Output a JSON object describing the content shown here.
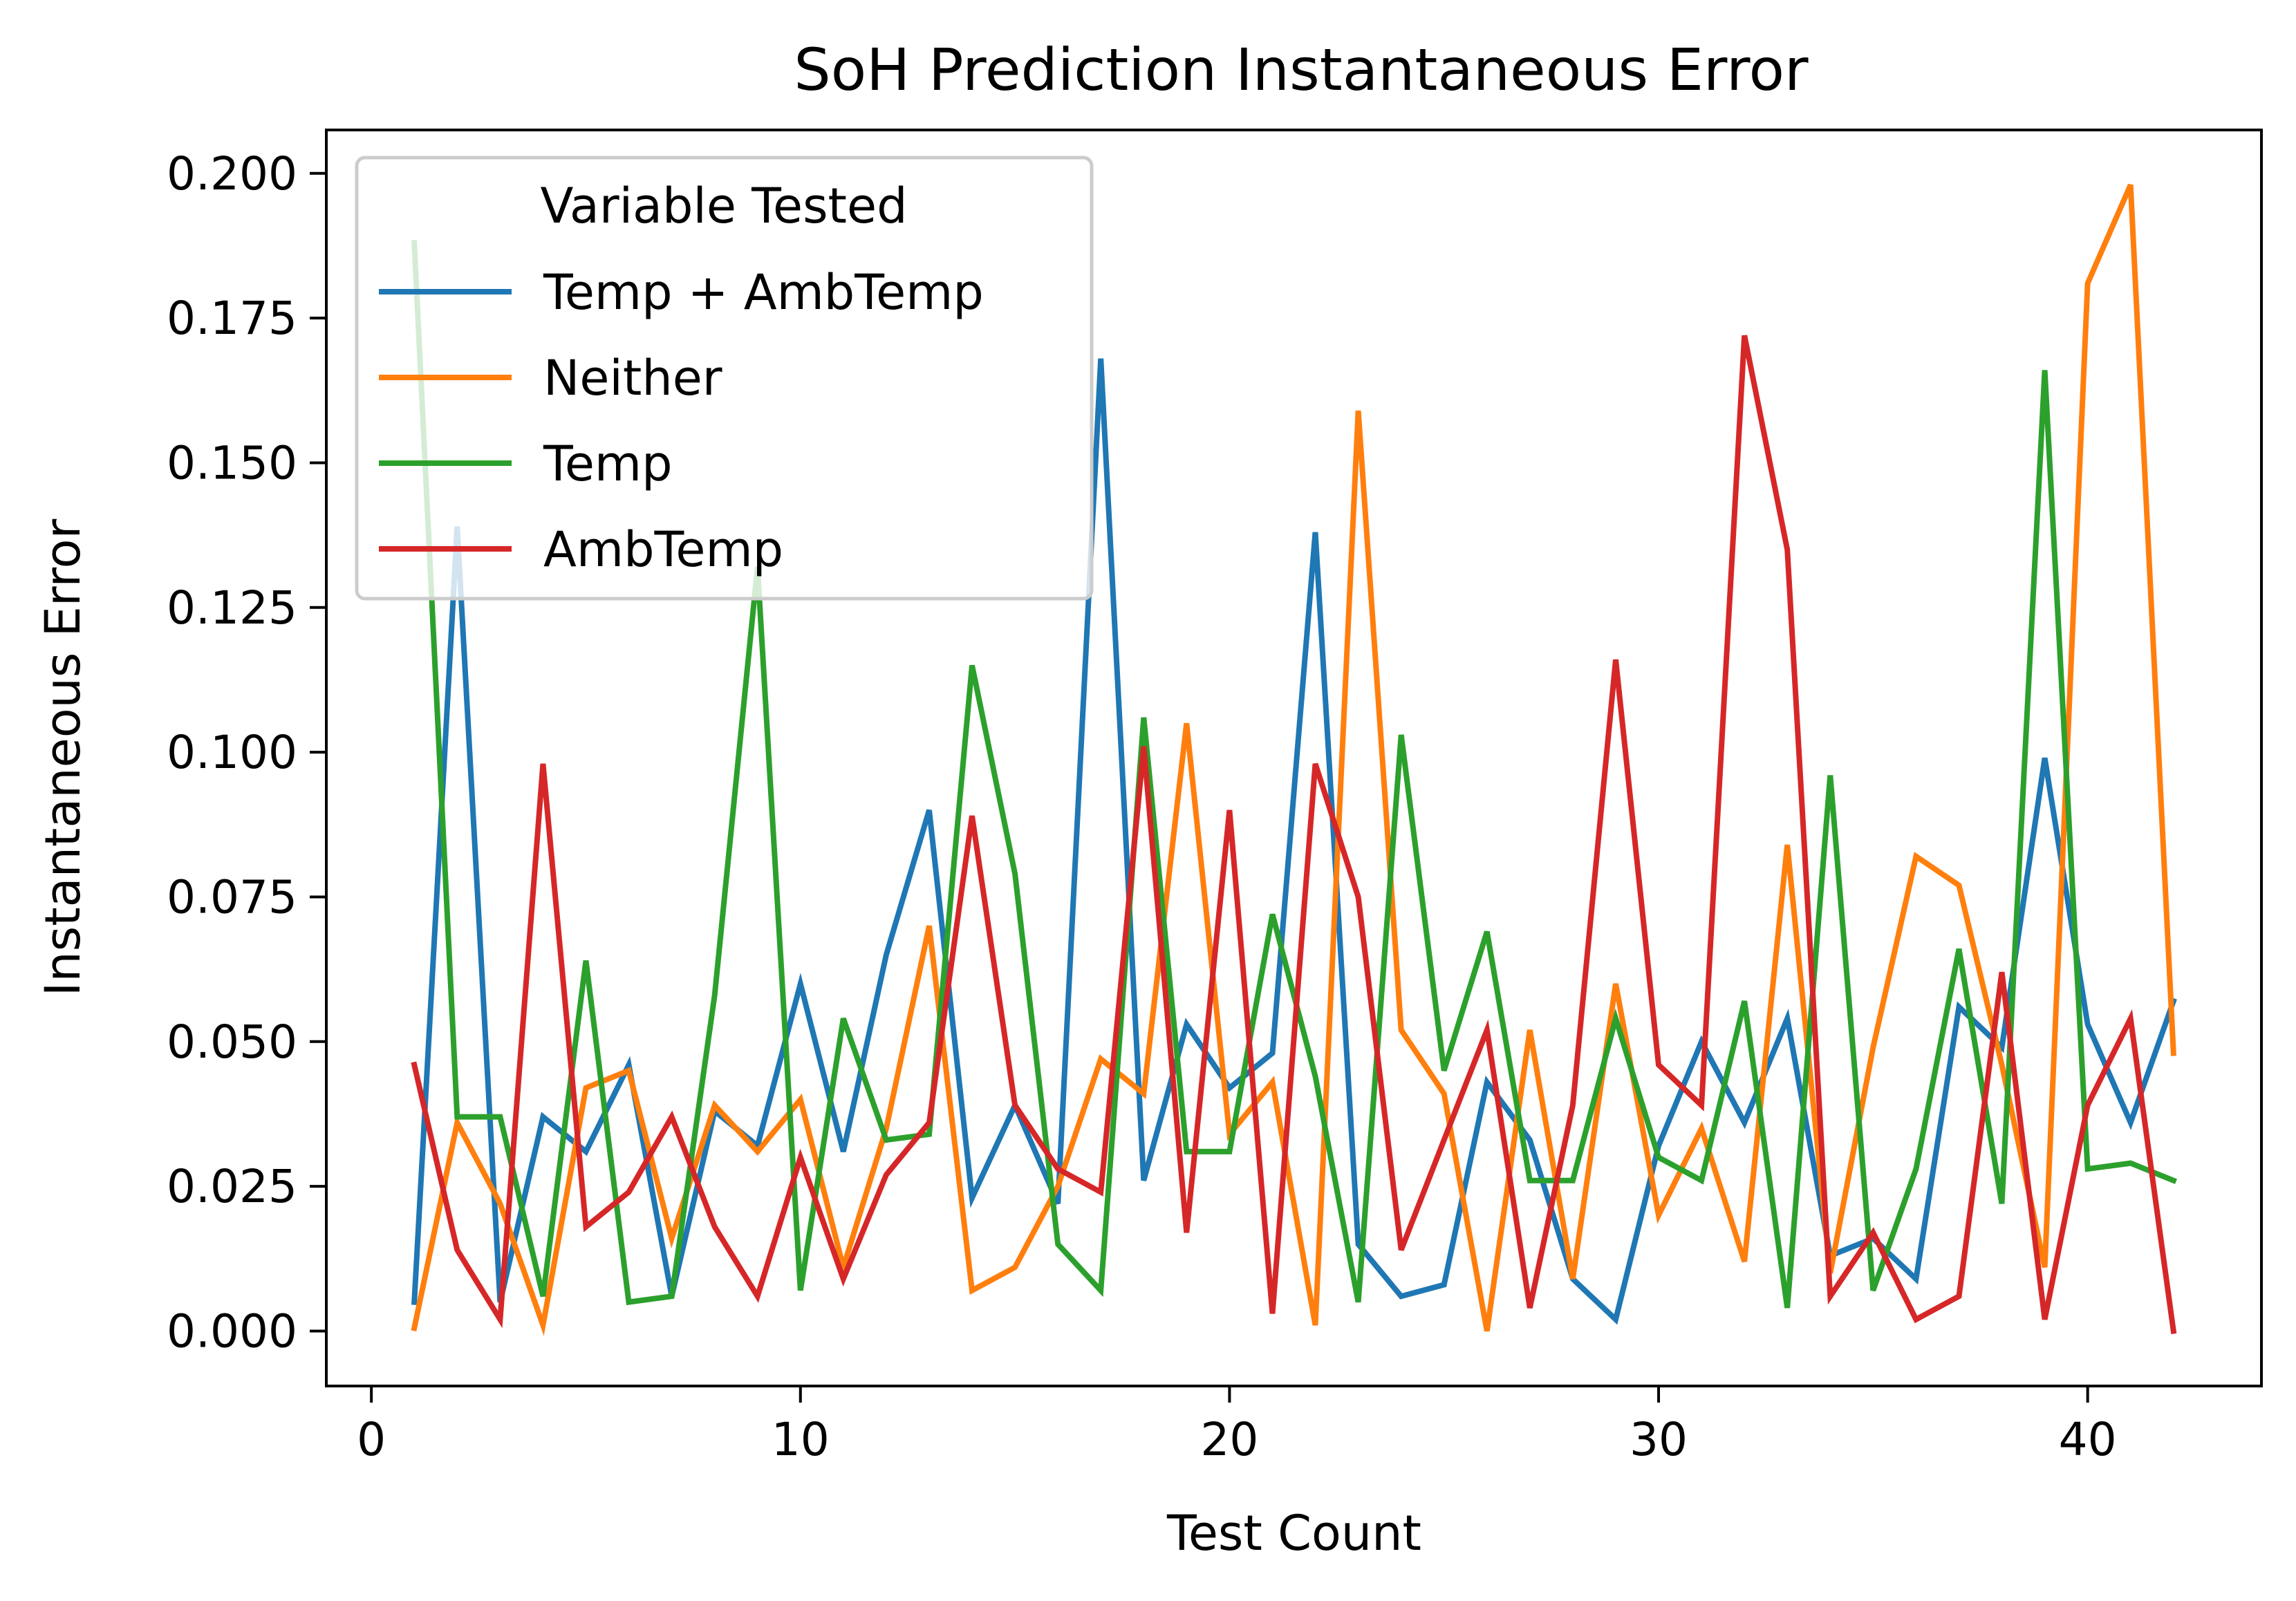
{
  "chart_data": {
    "type": "line",
    "title": "SoH Prediction Instantaneous Error",
    "xlabel": "Test Count",
    "ylabel": "Instantaneous Error",
    "xlim": [
      -1.05,
      44.05
    ],
    "ylim": [
      -0.0095,
      0.2075
    ],
    "xticks": [
      0,
      10,
      20,
      30,
      40
    ],
    "xtick_labels": [
      "0",
      "10",
      "20",
      "30",
      "40"
    ],
    "yticks": [
      0.0,
      0.025,
      0.05,
      0.075,
      0.1,
      0.125,
      0.15,
      0.175,
      0.2
    ],
    "ytick_labels": [
      "0.000",
      "0.025",
      "0.050",
      "0.075",
      "0.100",
      "0.125",
      "0.150",
      "0.175",
      "0.200"
    ],
    "grid": false,
    "legend": {
      "title": "Variable Tested",
      "placement": "top-left"
    },
    "x": [
      1,
      2,
      3,
      4,
      5,
      6,
      7,
      8,
      9,
      10,
      11,
      12,
      13,
      14,
      15,
      16,
      17,
      18,
      19,
      20,
      21,
      22,
      23,
      24,
      25,
      26,
      27,
      28,
      29,
      30,
      31,
      32,
      33,
      34,
      35,
      36,
      37,
      38,
      39,
      40,
      41,
      42
    ],
    "series": [
      {
        "name": "Temp + AmbTemp",
        "color": "#1f77b4",
        "values": [
          0.005,
          0.139,
          0.005,
          0.037,
          0.031,
          0.046,
          0.006,
          0.038,
          0.032,
          0.06,
          0.031,
          0.065,
          0.09,
          0.023,
          0.039,
          0.022,
          0.168,
          0.026,
          0.053,
          0.042,
          0.048,
          0.138,
          0.015,
          0.006,
          0.008,
          0.043,
          0.033,
          0.009,
          0.002,
          0.032,
          0.05,
          0.036,
          0.054,
          0.013,
          0.016,
          0.009,
          0.056,
          0.049,
          0.099,
          0.053,
          0.036,
          0.057
        ]
      },
      {
        "name": "Neither",
        "color": "#ff7f0e",
        "values": [
          0.0005,
          0.036,
          0.022,
          0.001,
          0.042,
          0.045,
          0.016,
          0.039,
          0.031,
          0.04,
          0.011,
          0.035,
          0.07,
          0.007,
          0.011,
          0.025,
          0.047,
          0.041,
          0.105,
          0.034,
          0.043,
          0.001,
          0.159,
          0.052,
          0.041,
          0.0,
          0.052,
          0.009,
          0.06,
          0.02,
          0.035,
          0.012,
          0.084,
          0.01,
          0.049,
          0.082,
          0.077,
          0.046,
          0.011,
          0.181,
          0.198,
          0.048
        ]
      },
      {
        "name": "Temp",
        "color": "#2ca02c",
        "values": [
          0.188,
          0.037,
          0.037,
          0.006,
          0.064,
          0.005,
          0.006,
          0.058,
          0.132,
          0.007,
          0.054,
          0.033,
          0.034,
          0.115,
          0.079,
          0.015,
          0.007,
          0.106,
          0.031,
          0.031,
          0.072,
          0.044,
          0.005,
          0.103,
          0.045,
          0.069,
          0.026,
          0.026,
          0.054,
          0.03,
          0.026,
          0.057,
          0.004,
          0.096,
          0.007,
          0.028,
          0.066,
          0.022,
          0.166,
          0.028,
          0.029,
          0.026
        ]
      },
      {
        "name": "AmbTemp",
        "color": "#d62728",
        "values": [
          0.046,
          0.014,
          0.002,
          0.098,
          0.018,
          0.024,
          0.037,
          0.018,
          0.006,
          0.03,
          0.009,
          0.027,
          0.036,
          0.089,
          0.039,
          0.028,
          0.024,
          0.101,
          0.017,
          0.09,
          0.003,
          0.098,
          0.075,
          0.014,
          0.033,
          0.052,
          0.004,
          0.039,
          0.116,
          0.046,
          0.039,
          0.172,
          0.135,
          0.006,
          0.017,
          0.002,
          0.006,
          0.062,
          0.002,
          0.039,
          0.054,
          0.0
        ]
      }
    ]
  }
}
